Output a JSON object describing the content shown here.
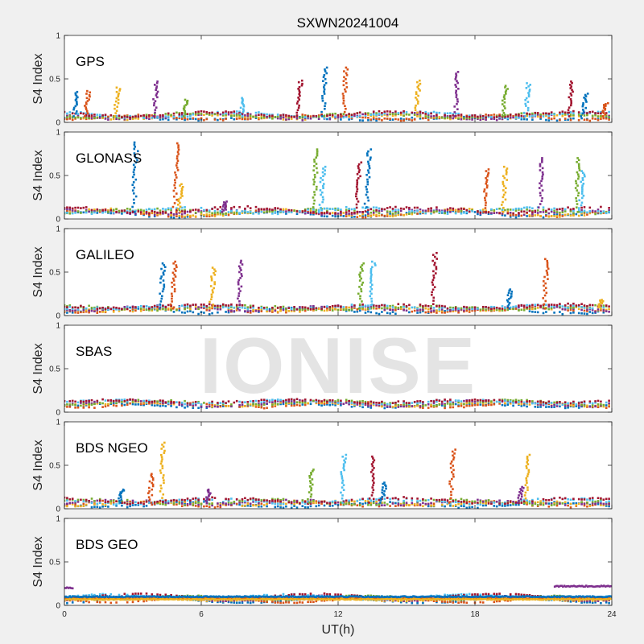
{
  "figure_title": "SXWN20241004",
  "xlabel": "UT(h)",
  "watermark": "IONISE",
  "colors": [
    "#0072BD",
    "#D95319",
    "#EDB120",
    "#7E2F8E",
    "#77AC30",
    "#4DBEEE",
    "#A2142F"
  ],
  "chart_data": {
    "type": "scatter",
    "title": "SXWN20241004",
    "xlabel": "UT(h)",
    "ylabel": "S4 Index",
    "xlim": [
      0,
      24
    ],
    "ylim": [
      0,
      1
    ],
    "xticks": [
      "0",
      "6",
      "12",
      "18",
      "24"
    ],
    "yticks": [
      "0",
      "0.5",
      "1"
    ],
    "grid": false,
    "panels": [
      {
        "label": "GPS",
        "baseline": 0.07,
        "noise": 0.025,
        "spikes": [
          [
            0.5,
            0.35
          ],
          [
            1.0,
            0.36
          ],
          [
            2.3,
            0.4
          ],
          [
            4.0,
            0.47
          ],
          [
            5.3,
            0.26
          ],
          [
            7.8,
            0.28
          ],
          [
            10.3,
            0.48
          ],
          [
            11.4,
            0.63
          ],
          [
            12.3,
            0.63
          ],
          [
            15.5,
            0.48
          ],
          [
            17.2,
            0.58
          ],
          [
            19.3,
            0.42
          ],
          [
            20.3,
            0.45
          ],
          [
            22.2,
            0.47
          ],
          [
            22.8,
            0.33
          ],
          [
            23.7,
            0.22
          ]
        ]
      },
      {
        "label": "GLONASS",
        "baseline": 0.08,
        "noise": 0.03,
        "spikes": [
          [
            3.1,
            0.88
          ],
          [
            4.9,
            0.87
          ],
          [
            5.1,
            0.4
          ],
          [
            7.0,
            0.2
          ],
          [
            11.0,
            0.8
          ],
          [
            11.3,
            0.6
          ],
          [
            12.9,
            0.65
          ],
          [
            13.3,
            0.8
          ],
          [
            18.5,
            0.57
          ],
          [
            19.3,
            0.6
          ],
          [
            20.9,
            0.7
          ],
          [
            22.5,
            0.7
          ],
          [
            22.7,
            0.55
          ]
        ]
      },
      {
        "label": "GALILEO",
        "baseline": 0.08,
        "noise": 0.03,
        "spikes": [
          [
            4.3,
            0.6
          ],
          [
            4.8,
            0.62
          ],
          [
            6.5,
            0.55
          ],
          [
            7.7,
            0.63
          ],
          [
            13.0,
            0.6
          ],
          [
            13.5,
            0.62
          ],
          [
            16.2,
            0.72
          ],
          [
            19.5,
            0.3
          ],
          [
            21.1,
            0.65
          ],
          [
            23.5,
            0.18
          ]
        ]
      },
      {
        "label": "SBAS",
        "baseline": 0.1,
        "noise": 0.025,
        "spikes": []
      },
      {
        "label": "BDS NGEO",
        "baseline": 0.07,
        "noise": 0.03,
        "spikes": [
          [
            2.5,
            0.22
          ],
          [
            3.8,
            0.4
          ],
          [
            4.3,
            0.76
          ],
          [
            6.3,
            0.22
          ],
          [
            10.8,
            0.45
          ],
          [
            12.2,
            0.62
          ],
          [
            13.5,
            0.6
          ],
          [
            14.0,
            0.3
          ],
          [
            17.0,
            0.68
          ],
          [
            20.3,
            0.62
          ],
          [
            20.0,
            0.25
          ]
        ]
      },
      {
        "label": "BDS GEO",
        "baseline": 0.08,
        "noise": 0.01,
        "spikes": [],
        "bands": [
          {
            "x": [
              0,
              24
            ],
            "y": 0.08,
            "color": "#D95319"
          },
          {
            "x": [
              0,
              24
            ],
            "y": 0.07,
            "color": "#EDB120"
          },
          {
            "x": [
              0,
              24
            ],
            "y": 0.1,
            "color": "#0072BD"
          },
          {
            "x": [
              21.5,
              24
            ],
            "y": 0.22,
            "color": "#7E2F8E"
          },
          {
            "x": [
              0,
              0.4
            ],
            "y": 0.2,
            "color": "#7E2F8E"
          }
        ]
      }
    ]
  }
}
